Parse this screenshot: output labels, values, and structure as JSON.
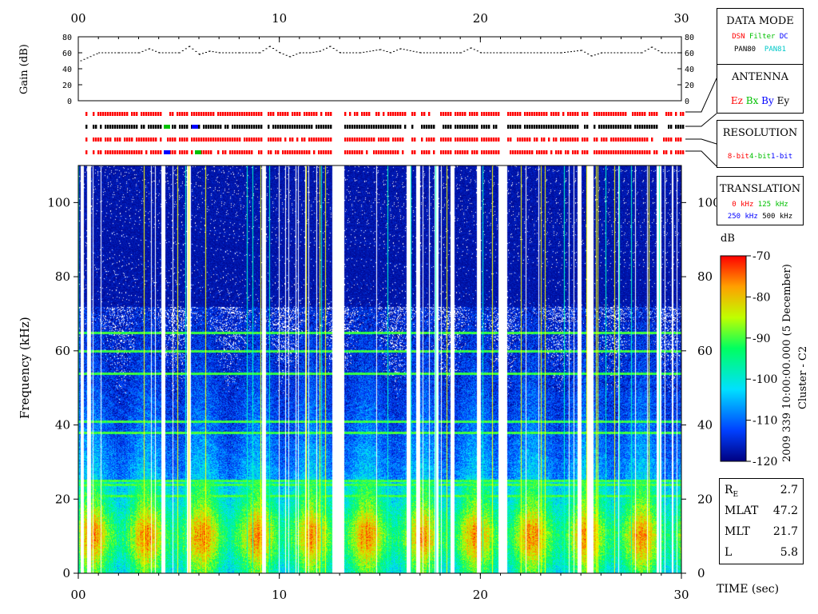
{
  "chart_data": [
    {
      "type": "line",
      "panel": "gain",
      "ylabel": "Gain (dB)",
      "ylim": [
        0,
        80
      ],
      "yticks": [
        "0",
        "20",
        "40",
        "60",
        "80"
      ],
      "xlim": [
        0,
        30
      ],
      "xticks": [
        "00",
        "10",
        "20",
        "30"
      ],
      "series": [
        {
          "x": [
            0.1,
            1.0,
            2.0,
            3.0,
            3.5,
            4.0,
            5.0,
            5.5,
            6.0,
            6.5,
            7.0,
            8.0,
            9.0,
            9.5,
            10.0,
            10.5,
            11.0,
            11.5,
            12.0,
            12.5,
            13.0,
            14.0,
            15.0,
            15.5,
            16.0,
            17.0,
            18.0,
            19.0,
            19.5,
            20.0,
            21.0,
            22.0,
            23.0,
            24.0,
            25.0,
            25.5,
            26.0,
            27.0,
            28.0,
            28.5,
            29.0,
            30.0
          ],
          "values": [
            50,
            60,
            60,
            60,
            65,
            60,
            60,
            68,
            58,
            62,
            60,
            60,
            60,
            68,
            60,
            55,
            60,
            60,
            62,
            68,
            60,
            60,
            64,
            60,
            65,
            60,
            60,
            60,
            66,
            60,
            60,
            60,
            60,
            60,
            63,
            56,
            60,
            60,
            60,
            67,
            60,
            60
          ]
        }
      ]
    },
    {
      "type": "heatmap",
      "panel": "spectrogram",
      "xlabel": "TIME (sec)",
      "ylabel": "Frequency (kHz)",
      "xlim": [
        0,
        30
      ],
      "ylim": [
        0,
        110
      ],
      "xticks": [
        "00",
        "10",
        "20",
        "30"
      ],
      "yticks": [
        "0",
        "20",
        "40",
        "60",
        "80",
        "100"
      ],
      "colorbar": {
        "unit": "dB",
        "range": [
          -120,
          -70
        ],
        "ticks": [
          "-70",
          "-80",
          "-90",
          "-100",
          "-110",
          "-120"
        ]
      },
      "interference_lines_khz": [
        65,
        60,
        54,
        41,
        38,
        25,
        24,
        21
      ],
      "data_gaps_sec": [
        [
          0.1,
          0.25
        ],
        [
          0.4,
          0.6
        ],
        [
          4.1,
          4.3
        ],
        [
          5.4,
          5.6
        ],
        [
          9.1,
          9.3
        ],
        [
          12.6,
          13.2
        ],
        [
          16.3,
          16.5
        ],
        [
          16.8,
          17.0
        ],
        [
          17.7,
          17.9
        ],
        [
          18.5,
          18.7
        ],
        [
          19.8,
          20.0
        ],
        [
          20.9,
          21.3
        ],
        [
          24.8,
          25.0
        ],
        [
          25.3,
          25.6
        ],
        [
          28.8,
          29.0
        ],
        [
          29.5,
          29.6
        ]
      ]
    }
  ],
  "status_bars": {
    "rows": [
      {
        "name": "data-mode",
        "color": "#ff0000"
      },
      {
        "name": "antenna",
        "color": "#000000"
      },
      {
        "name": "resolution",
        "color": "#ff0000"
      },
      {
        "name": "translation",
        "color": "#ff0000"
      }
    ]
  },
  "legends": {
    "data_mode": {
      "title": "DATA MODE",
      "line1": [
        {
          "text": "DSN",
          "color": "#ff0000"
        },
        {
          "text": "Filter",
          "color": "#00c000"
        },
        {
          "text": "DC",
          "color": "#0000ff"
        }
      ],
      "line2": [
        {
          "text": "PAN80",
          "color": "#000000"
        },
        {
          "text": "PAN81",
          "color": "#00c8c8"
        }
      ]
    },
    "antenna": {
      "title": "ANTENNA",
      "items": [
        {
          "text": "Ez",
          "color": "#ff0000"
        },
        {
          "text": "Bx",
          "color": "#00c000"
        },
        {
          "text": "By",
          "color": "#0000ff"
        },
        {
          "text": "Ey",
          "color": "#000000"
        }
      ]
    },
    "resolution": {
      "title": "RESOLUTION",
      "items": [
        {
          "text": "8-bit",
          "color": "#ff0000"
        },
        {
          "text": "4-bit",
          "color": "#00c000"
        },
        {
          "text": "1-bit",
          "color": "#0000ff"
        }
      ]
    },
    "translation": {
      "title": "TRANSLATION",
      "line1": [
        {
          "text": "0 kHz",
          "color": "#ff0000"
        },
        {
          "text": "125 kHz",
          "color": "#00c000"
        }
      ],
      "line2": [
        {
          "text": "250 kHz",
          "color": "#0000ff"
        },
        {
          "text": "500 kHz",
          "color": "#000000"
        }
      ]
    }
  },
  "ephemeris": [
    {
      "label": "R",
      "sub": "E",
      "value": "2.7"
    },
    {
      "label": "MLAT",
      "sub": "",
      "value": "47.2"
    },
    {
      "label": "MLT",
      "sub": "",
      "value": "21.7"
    },
    {
      "label": "L",
      "sub": "",
      "value": "5.8"
    }
  ],
  "colorbar_unit": "dB",
  "time_axis_label": "TIME (sec)",
  "side_caption": "2009 339 10:00:00.000 (5 December)",
  "spacecraft": "Cluster - C2"
}
